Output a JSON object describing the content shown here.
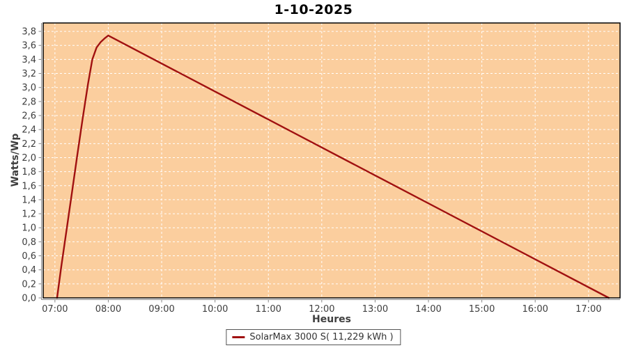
{
  "chart_data": {
    "type": "line",
    "title": "1-10-2025",
    "xlabel": "Heures",
    "ylabel": "Watts/Wp",
    "grid": true,
    "legend_position": "bottom",
    "xlim": [
      6.78,
      17.59
    ],
    "ylim": [
      0,
      3.92
    ],
    "x_ticks": [
      {
        "v": 7,
        "label": "07:00"
      },
      {
        "v": 8,
        "label": "08:00"
      },
      {
        "v": 9,
        "label": "09:00"
      },
      {
        "v": 10,
        "label": "10:00"
      },
      {
        "v": 11,
        "label": "11:00"
      },
      {
        "v": 12,
        "label": "12:00"
      },
      {
        "v": 13,
        "label": "13:00"
      },
      {
        "v": 14,
        "label": "14:00"
      },
      {
        "v": 15,
        "label": "15:00"
      },
      {
        "v": 16,
        "label": "16:00"
      },
      {
        "v": 17,
        "label": "17:00"
      }
    ],
    "y_ticks": [
      {
        "v": 0.0,
        "label": "0,0"
      },
      {
        "v": 0.2,
        "label": "0,2"
      },
      {
        "v": 0.4,
        "label": "0,4"
      },
      {
        "v": 0.6,
        "label": "0,6"
      },
      {
        "v": 0.8,
        "label": "0,8"
      },
      {
        "v": 1.0,
        "label": "1,0"
      },
      {
        "v": 1.2,
        "label": "1,2"
      },
      {
        "v": 1.4,
        "label": "1,4"
      },
      {
        "v": 1.6,
        "label": "1,6"
      },
      {
        "v": 1.8,
        "label": "1,8"
      },
      {
        "v": 2.0,
        "label": "2,0"
      },
      {
        "v": 2.2,
        "label": "2,2"
      },
      {
        "v": 2.4,
        "label": "2,4"
      },
      {
        "v": 2.6,
        "label": "2,6"
      },
      {
        "v": 2.8,
        "label": "2,8"
      },
      {
        "v": 3.0,
        "label": "3,0"
      },
      {
        "v": 3.2,
        "label": "3,2"
      },
      {
        "v": 3.4,
        "label": "3,4"
      },
      {
        "v": 3.6,
        "label": "3,6"
      },
      {
        "v": 3.8,
        "label": "3,8"
      }
    ],
    "series": [
      {
        "name": "SolarMax 3000 S( 11,229 kWh )",
        "color": "#a01010",
        "points": [
          [
            7.04,
            0.0
          ],
          [
            7.12,
            0.45
          ],
          [
            7.22,
            0.98
          ],
          [
            7.32,
            1.51
          ],
          [
            7.42,
            2.04
          ],
          [
            7.52,
            2.56
          ],
          [
            7.62,
            3.05
          ],
          [
            7.7,
            3.4
          ],
          [
            7.78,
            3.57
          ],
          [
            7.86,
            3.65
          ],
          [
            7.93,
            3.7
          ],
          [
            8.0,
            3.74
          ],
          [
            17.38,
            0.0
          ]
        ]
      }
    ],
    "colors": {
      "plot_bg": "#fbce9e",
      "grid": "#ffffff",
      "plot_border": "#000000",
      "axis_line": "#8a8a8a",
      "tick_text": "#3d3d3d",
      "title_text": "#000000",
      "legend_text": "#333333",
      "legend_border": "#555555"
    }
  }
}
